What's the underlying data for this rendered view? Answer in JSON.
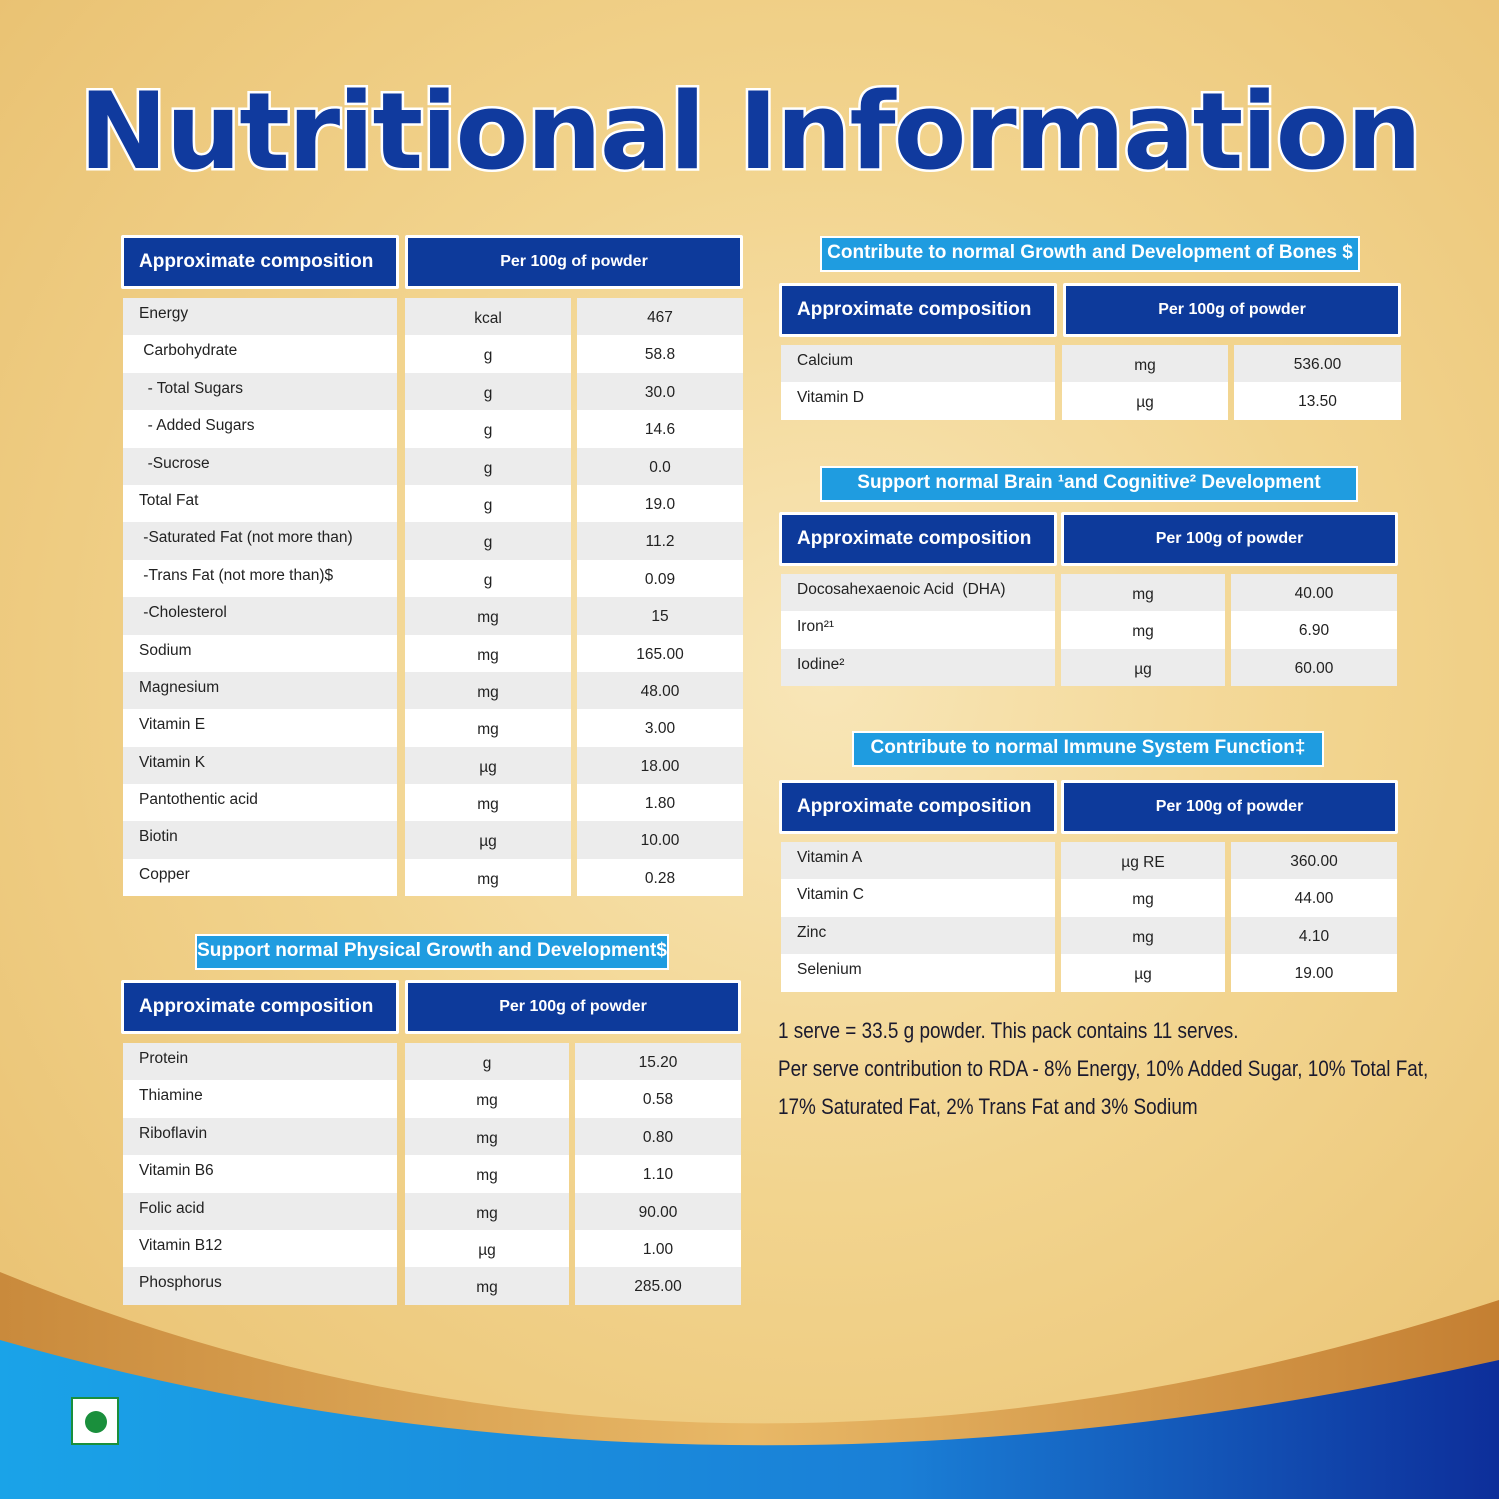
{
  "title": "Nutritional Information",
  "colors": {
    "title_blue": "#103a9e",
    "header_blue": "#0d3a9b",
    "banner_blue": "#1f9ce0",
    "veg_green": "#1a8f3c"
  },
  "table_header": {
    "composition": "Approximate composition",
    "per": "Per 100g of powder"
  },
  "main_table": {
    "rows": [
      {
        "name": "Energy",
        "unit": "kcal",
        "value": "467"
      },
      {
        "name": " Carbohydrate",
        "unit": "g",
        "value": "58.8"
      },
      {
        "name": "  - Total Sugars",
        "unit": "g",
        "value": "30.0"
      },
      {
        "name": "  - Added Sugars",
        "unit": "g",
        "value": "14.6"
      },
      {
        "name": "  -Sucrose",
        "unit": "g",
        "value": "0.0"
      },
      {
        "name": "Total Fat",
        "unit": "g",
        "value": "19.0"
      },
      {
        "name": " -Saturated Fat (not more than)",
        "unit": "g",
        "value": "11.2"
      },
      {
        "name": " -Trans Fat (not more than)$",
        "unit": "g",
        "value": "0.09"
      },
      {
        "name": " -Cholesterol",
        "unit": "mg",
        "value": "15"
      },
      {
        "name": "Sodium",
        "unit": "mg",
        "value": "165.00"
      },
      {
        "name": "Magnesium",
        "unit": "mg",
        "value": "48.00"
      },
      {
        "name": "Vitamin E",
        "unit": "mg",
        "value": "3.00"
      },
      {
        "name": "Vitamin K",
        "unit": "µg",
        "value": "18.00"
      },
      {
        "name": "Pantothentic acid",
        "unit": "mg",
        "value": "1.80"
      },
      {
        "name": "Biotin",
        "unit": "µg",
        "value": "10.00"
      },
      {
        "name": "Copper",
        "unit": "mg",
        "value": "0.28"
      }
    ]
  },
  "physical": {
    "banner": "Support normal Physical Growth and Development$",
    "rows": [
      {
        "name": "Protein",
        "unit": "g",
        "value": "15.20"
      },
      {
        "name": "Thiamine",
        "unit": "mg",
        "value": "0.58"
      },
      {
        "name": "Riboflavin",
        "unit": "mg",
        "value": "0.80"
      },
      {
        "name": "Vitamin B6",
        "unit": "mg",
        "value": "1.10"
      },
      {
        "name": "Folic acid",
        "unit": "mg",
        "value": "90.00"
      },
      {
        "name": "Vitamin B12",
        "unit": "µg",
        "value": "1.00"
      },
      {
        "name": "Phosphorus",
        "unit": "mg",
        "value": "285.00"
      }
    ]
  },
  "bones": {
    "banner": "Contribute to normal Growth and Development of Bones $",
    "rows": [
      {
        "name": "Calcium",
        "unit": "mg",
        "value": "536.00"
      },
      {
        "name": "Vitamin D",
        "unit": "µg",
        "value": "13.50"
      }
    ]
  },
  "brain": {
    "banner": "Support normal Brain ¹and Cognitive² Development",
    "rows": [
      {
        "name": "Docosahexaenoic Acid  (DHA)",
        "unit": "mg",
        "value": "40.00"
      },
      {
        "name": "Iron²¹",
        "unit": "mg",
        "value": "6.90"
      },
      {
        "name": "Iodine²",
        "unit": "µg",
        "value": "60.00"
      }
    ]
  },
  "immune": {
    "banner": "Contribute to normal Immune System Function‡",
    "rows": [
      {
        "name": "Vitamin A",
        "unit": "µg RE",
        "value": "360.00"
      },
      {
        "name": "Vitamin C",
        "unit": "mg",
        "value": "44.00"
      },
      {
        "name": "Zinc",
        "unit": "mg",
        "value": "4.10"
      },
      {
        "name": "Selenium",
        "unit": "µg",
        "value": "19.00"
      }
    ]
  },
  "notes": {
    "line1": "1 serve = 33.5 g powder. This pack contains 11 serves.",
    "line2": "Per serve contribution to RDA - 8% Energy, 10% Added Sugar, 10% Total Fat,",
    "line3": "17% Saturated Fat, 2% Trans Fat and 3% Sodium"
  },
  "icons": {
    "veg_mark": "veg-symbol-icon"
  }
}
